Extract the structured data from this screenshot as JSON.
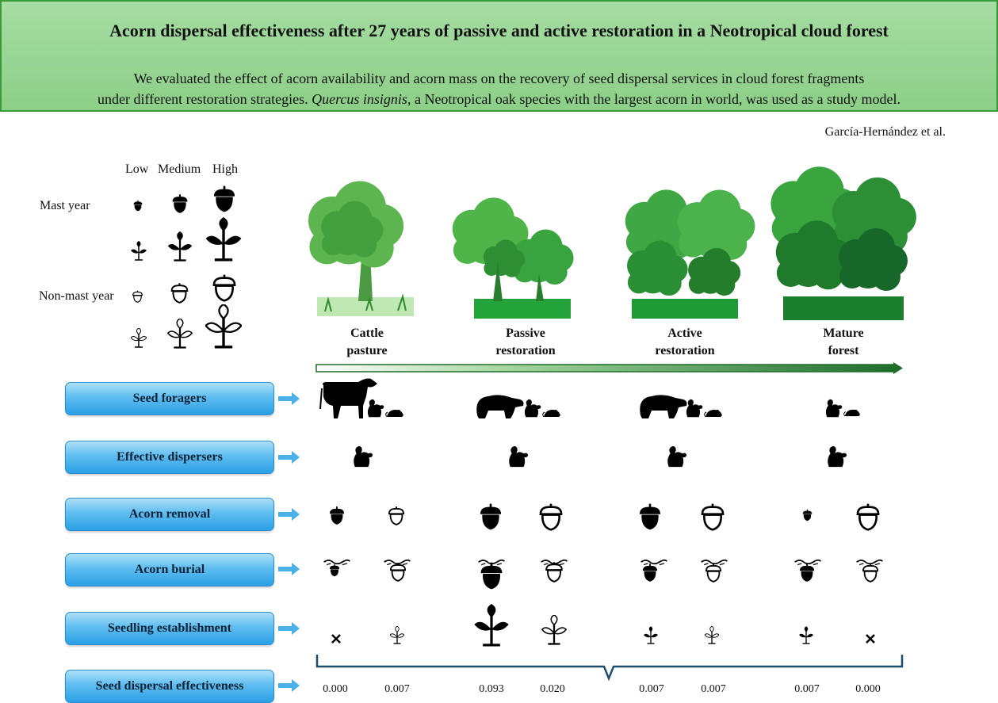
{
  "header": {
    "title": "Acorn dispersal effectiveness after 27 years of passive and active restoration in a Neotropical cloud forest",
    "desc_line1": "We evaluated the effect of acorn availability and acorn mass on the recovery of seed dispersal services in cloud forest fragments",
    "desc_line2_pre": "under different restoration strategies. ",
    "desc_species": "Quercus insignis",
    "desc_line2_post": ", a Neotropical oak species with the largest acorn in world, was used as a study model."
  },
  "authors": "García-Hernández et al.",
  "legend": {
    "levels": [
      "Low",
      "Medium",
      "High"
    ],
    "mast_year": "Mast year",
    "non_mast_year": "Non-mast year"
  },
  "stages": [
    {
      "line1": "Cattle",
      "line2": "pasture"
    },
    {
      "line1": "Passive",
      "line2": "restoration"
    },
    {
      "line1": "Active",
      "line2": "restoration"
    },
    {
      "line1": "Mature",
      "line2": "forest"
    }
  ],
  "rows": [
    "Seed foragers",
    "Effective dispersers",
    "Acorn removal",
    "Acorn burial",
    "Seedling establishment",
    "Seed dispersal effectiveness"
  ],
  "effectiveness_values": [
    "0.000",
    "0.007",
    "0.093",
    "0.020",
    "0.007",
    "0.007",
    "0.007",
    "0.000"
  ],
  "colors": {
    "header_bg": "#8ccf88",
    "button_blue": "#2aa0e6",
    "arrow_blue": "#4ab0e8",
    "gradient_arrow_dark": "#1e6e2a",
    "bracket": "#1c4f6f"
  },
  "icons": [
    "acorn-icon",
    "empty-acorn-icon",
    "seedling-icon",
    "cow-icon",
    "bear-icon",
    "squirrel-icon",
    "mouse-icon",
    "tree-icon",
    "cross-icon"
  ]
}
